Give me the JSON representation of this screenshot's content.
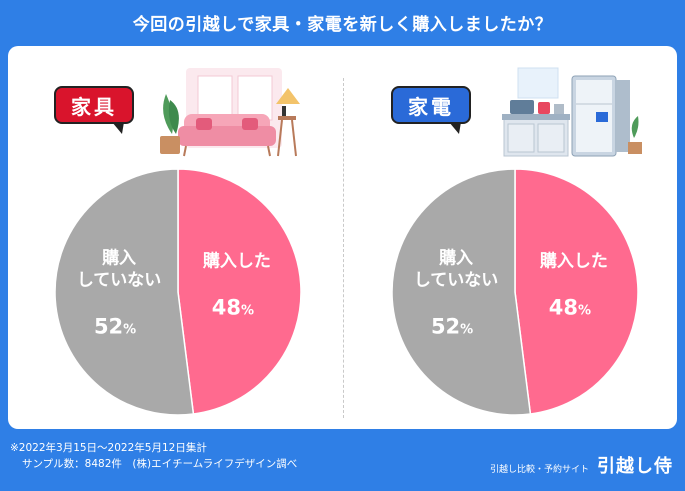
{
  "title": "今回の引越しで家具・家電を新しく購入しましたか？",
  "chart_data": [
    {
      "type": "pie",
      "title": "家具",
      "slices": [
        {
          "label": "購入した",
          "value": 48,
          "display": "48",
          "color": "#ff6a8f"
        },
        {
          "label": "購入\nしていない",
          "value": 52,
          "display": "52",
          "color": "#a9a9a9"
        }
      ],
      "unit": "%"
    },
    {
      "type": "pie",
      "title": "家電",
      "slices": [
        {
          "label": "購入した",
          "value": 48,
          "display": "48",
          "color": "#ff6a8f"
        },
        {
          "label": "購入\nしていない",
          "value": 52,
          "display": "52",
          "color": "#a9a9a9"
        }
      ],
      "unit": "%"
    }
  ],
  "footer": {
    "period": "※2022年3月15日～2022年5月12日集計",
    "sample": "サンプル数：8482件　(株)エイチームライフデザイン調べ",
    "tagline": "引越し比較・予約サイト",
    "brand": "引越し侍"
  },
  "colors": {
    "background": "#2f7fe6",
    "bought": "#ff6a8f",
    "not_bought": "#a9a9a9",
    "furniture_tag": "#d9142c",
    "appliance_tag": "#2a6ad8"
  }
}
